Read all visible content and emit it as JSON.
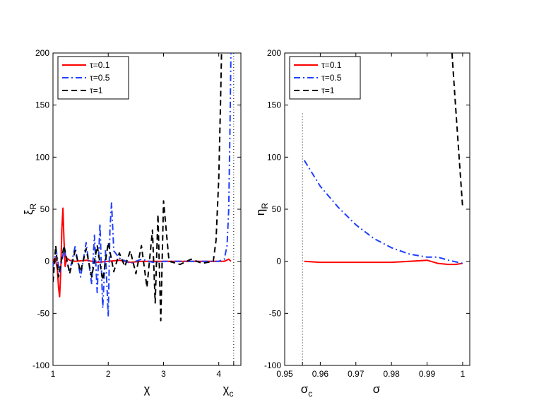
{
  "chart_data": [
    {
      "type": "line",
      "xlabel": "χ",
      "ylabel": "ξ",
      "ylabel_sub": "R",
      "xlim": [
        1,
        4.4
      ],
      "ylim": [
        -100,
        200
      ],
      "xticks": [
        1,
        2,
        3,
        4
      ],
      "yticks": [
        -100,
        -50,
        0,
        50,
        100,
        150,
        200
      ],
      "extra_xtick": {
        "value": 4.27,
        "label": "χ",
        "sub": "c"
      },
      "vline": {
        "x": 4.27,
        "style": "dotted"
      },
      "grid": false,
      "legend": "top-left",
      "series": [
        {
          "name": "τ=0.1",
          "color": "#ff0000",
          "dash": "solid",
          "x": [
            1.0,
            1.04,
            1.08,
            1.1,
            1.12,
            1.14,
            1.16,
            1.18,
            1.2,
            1.22,
            1.25,
            1.3,
            1.4,
            1.6,
            1.8,
            2.0,
            2.2,
            2.4,
            2.6,
            2.8,
            3.0,
            3.2,
            3.4,
            3.6,
            3.8,
            4.0,
            4.1,
            4.18,
            4.22
          ],
          "y": [
            0,
            3,
            -8,
            -25,
            -34,
            -10,
            30,
            51,
            20,
            -5,
            3,
            1,
            0,
            1,
            -1,
            0,
            1,
            -1,
            0,
            0,
            0,
            0,
            0,
            0,
            0,
            0,
            0,
            2,
            0
          ]
        },
        {
          "name": "τ=0.5",
          "color": "#1f3fff",
          "dash": "dashdot",
          "x": [
            1.0,
            1.06,
            1.12,
            1.2,
            1.3,
            1.4,
            1.5,
            1.6,
            1.7,
            1.75,
            1.8,
            1.85,
            1.9,
            1.95,
            2.0,
            2.03,
            2.06,
            2.1,
            2.2,
            2.4,
            2.6,
            2.8,
            3.0,
            3.4,
            3.8,
            4.0,
            4.1,
            4.15,
            4.18,
            4.2,
            4.22
          ],
          "y": [
            -5,
            10,
            -12,
            12,
            -10,
            14,
            -15,
            18,
            -22,
            25,
            -30,
            36,
            -45,
            10,
            -53,
            30,
            56,
            10,
            3,
            -2,
            2,
            -1,
            0,
            0,
            0,
            0,
            2,
            15,
            50,
            120,
            200
          ]
        },
        {
          "name": "τ=1",
          "color": "#000000",
          "dash": "dashed",
          "x": [
            1.0,
            1.05,
            1.1,
            1.2,
            1.3,
            1.4,
            1.5,
            1.6,
            1.7,
            1.8,
            1.9,
            2.0,
            2.1,
            2.2,
            2.3,
            2.4,
            2.5,
            2.6,
            2.7,
            2.8,
            2.85,
            2.9,
            2.95,
            3.0,
            3.1,
            3.3,
            3.5,
            3.7,
            3.9,
            3.95,
            4.0,
            4.03,
            4.05
          ],
          "y": [
            -20,
            15,
            -15,
            15,
            -12,
            10,
            -10,
            12,
            -15,
            15,
            -18,
            18,
            -10,
            8,
            -5,
            10,
            -12,
            15,
            -25,
            30,
            -40,
            45,
            -57,
            58,
            0,
            -3,
            2,
            -2,
            0,
            20,
            80,
            150,
            200
          ]
        }
      ]
    },
    {
      "type": "line",
      "xlabel": "σ",
      "ylabel": "η",
      "ylabel_sub": "R",
      "xlim": [
        0.95,
        1.002
      ],
      "ylim": [
        -100,
        200
      ],
      "xticks": [
        0.95,
        0.96,
        0.97,
        0.98,
        0.99,
        1
      ],
      "yticks": [
        -100,
        -50,
        0,
        50,
        100,
        150,
        200
      ],
      "extra_xtick": {
        "value": 0.955,
        "label": "σ",
        "sub": "c"
      },
      "vline": {
        "x": 0.955,
        "style": "dotted",
        "ymax": 142
      },
      "grid": false,
      "legend": "top-left",
      "series": [
        {
          "name": "τ=0.1",
          "color": "#ff0000",
          "dash": "solid",
          "x": [
            0.9555,
            0.96,
            0.965,
            0.97,
            0.975,
            0.98,
            0.985,
            0.99,
            0.993,
            0.996,
            0.998,
            1.0
          ],
          "y": [
            0,
            -1,
            -1,
            -1,
            -1,
            -1,
            0,
            1,
            -2,
            -3,
            -3,
            -2
          ]
        },
        {
          "name": "τ=0.5",
          "color": "#1f3fff",
          "dash": "dashdot",
          "x": [
            0.9555,
            0.96,
            0.965,
            0.97,
            0.975,
            0.98,
            0.985,
            0.99,
            0.993,
            0.996,
            1.0
          ],
          "y": [
            97,
            72,
            52,
            35,
            22,
            13,
            7,
            4,
            4,
            1,
            -2
          ]
        },
        {
          "name": "τ=1",
          "color": "#000000",
          "dash": "dashed",
          "x": [
            0.997,
            0.998,
            0.999,
            1.0
          ],
          "y": [
            200,
            150,
            100,
            52
          ]
        }
      ]
    }
  ]
}
